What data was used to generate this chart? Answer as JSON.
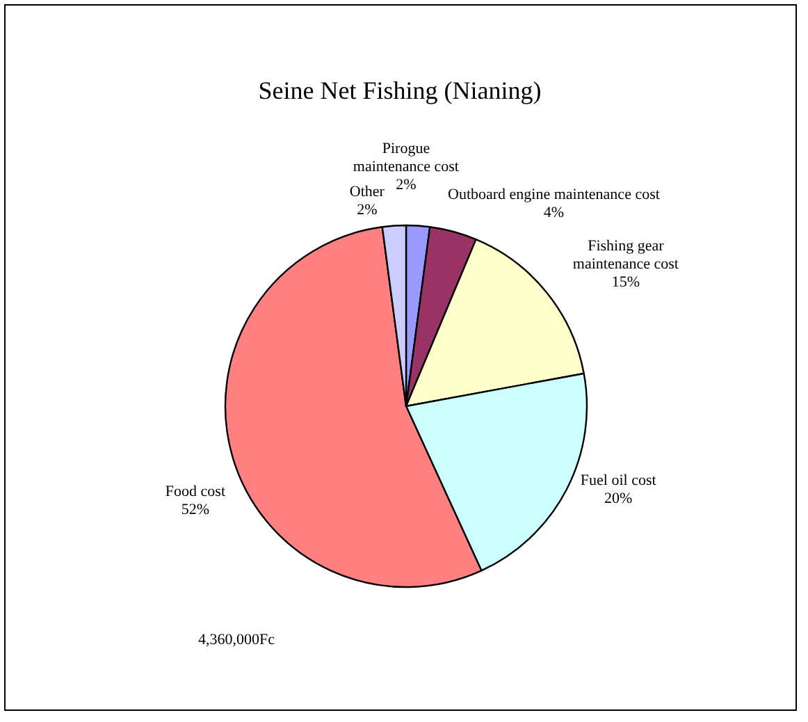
{
  "chart_data": {
    "type": "pie",
    "title": "Seine Net Fishing (Nianing)",
    "categories": [
      "Pirogue maintenance cost",
      "Outboard engine maintenance cost",
      "Fishing gear maintenance cost",
      "Fuel oil cost",
      "Food cost",
      "Other"
    ],
    "values": [
      2,
      4,
      15,
      20,
      52,
      2
    ],
    "value_labels": [
      "2%",
      "4%",
      "15%",
      "20%",
      "52%",
      "2%"
    ],
    "colors": [
      "#9999ff",
      "#993366",
      "#ffffcc",
      "#ccffff",
      "#ff8080",
      "#ccccff"
    ],
    "annotations": [
      "4,360,000Fc"
    ],
    "legend": false
  }
}
